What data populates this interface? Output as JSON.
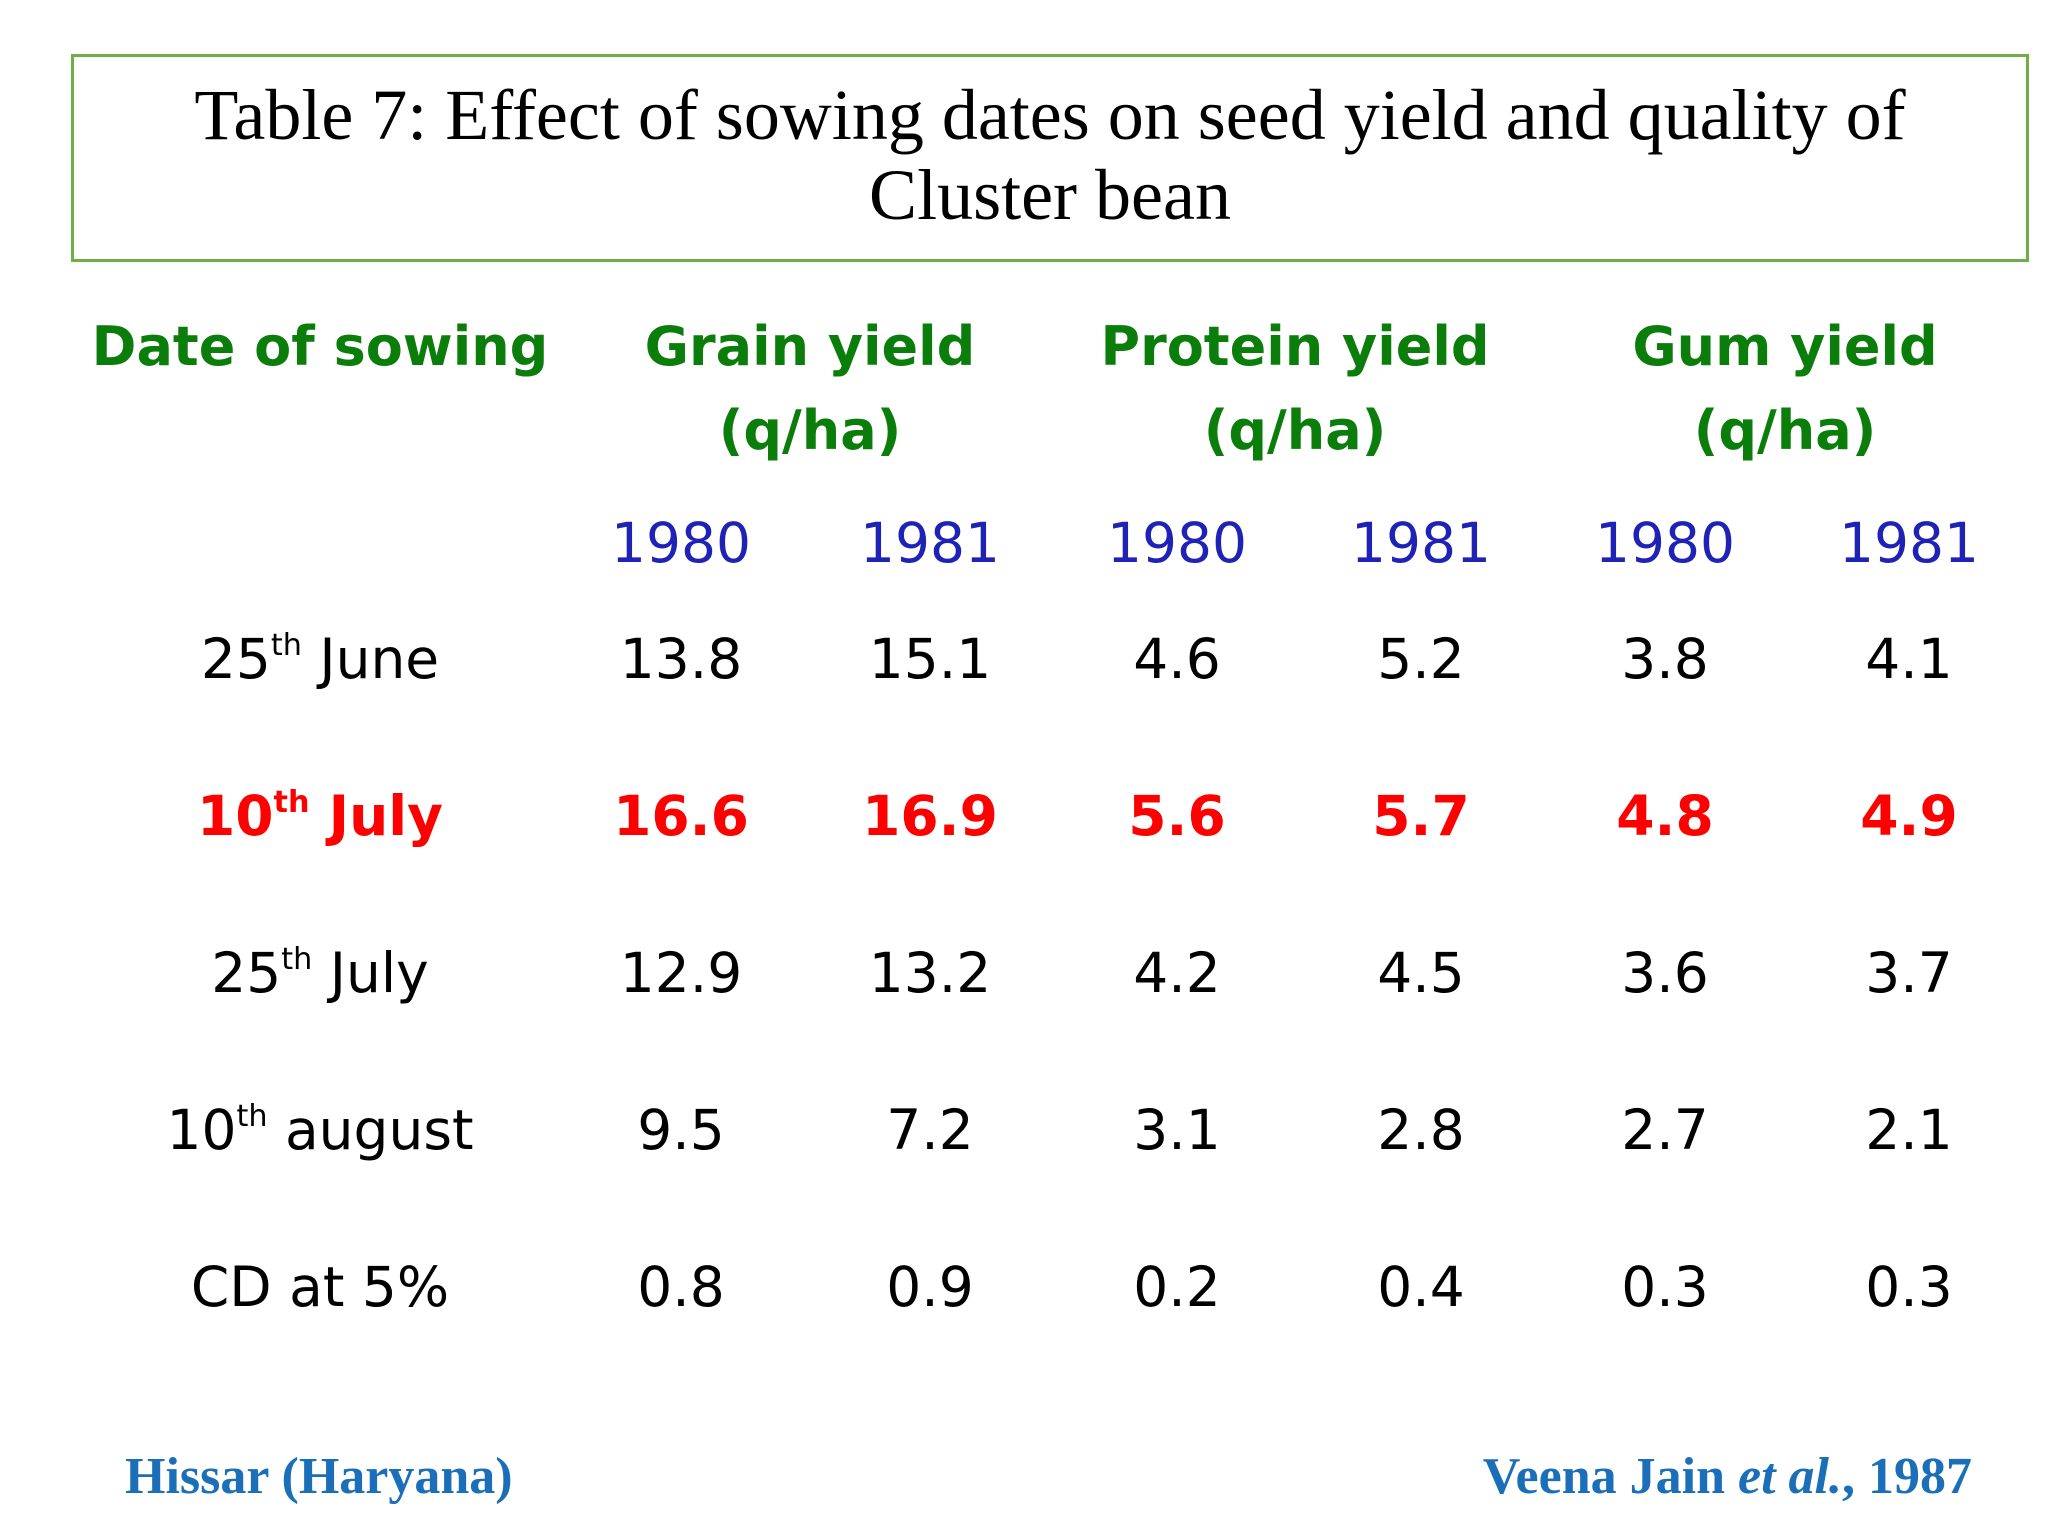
{
  "title": {
    "line1": "Table 7: Effect of sowing dates on seed yield and quality of",
    "line2": "Cluster bean"
  },
  "columns": {
    "date_header": "Date of sowing",
    "grain": {
      "name": "Grain yield",
      "unit": "(q/ha)"
    },
    "protein": {
      "name": "Protein yield",
      "unit": "(q/ha)"
    },
    "gum": {
      "name": "Gum yield",
      "unit": "(q/ha)"
    },
    "years": [
      "1980",
      "1981",
      "1980",
      "1981",
      "1980",
      "1981"
    ]
  },
  "rows": [
    {
      "day": "25",
      "sup": "th",
      "month": " June",
      "values": [
        "13.8",
        "15.1",
        "4.6",
        "5.2",
        "3.8",
        "4.1"
      ],
      "highlight": false
    },
    {
      "day": "10",
      "sup": "th",
      "month": " July",
      "values": [
        "16.6",
        "16.9",
        "5.6",
        "5.7",
        "4.8",
        "4.9"
      ],
      "highlight": true
    },
    {
      "day": "25",
      "sup": "th",
      "month": " July",
      "values": [
        "12.9",
        "13.2",
        "4.2",
        "4.5",
        "3.6",
        "3.7"
      ],
      "highlight": false
    },
    {
      "day": "10",
      "sup": "th",
      "month": " august",
      "values": [
        "9.5",
        "7.2",
        "3.1",
        "2.8",
        "2.7",
        "2.1"
      ],
      "highlight": false
    },
    {
      "day": "CD at 5%",
      "sup": "",
      "month": "",
      "values": [
        "0.8",
        "0.9",
        "0.2",
        "0.4",
        "0.3",
        "0.3"
      ],
      "highlight": false
    }
  ],
  "footer": {
    "location": "Hissar (Haryana)",
    "citation_author": "Veena Jain ",
    "citation_etal": "et al.",
    "citation_year": ", 1987"
  },
  "colors": {
    "header_green": "#0a7d0a",
    "year_blue": "#1f23b5",
    "highlight_red": "#ff0000",
    "footer_blue": "#1b6fb8",
    "box_border": "#70ad47"
  }
}
